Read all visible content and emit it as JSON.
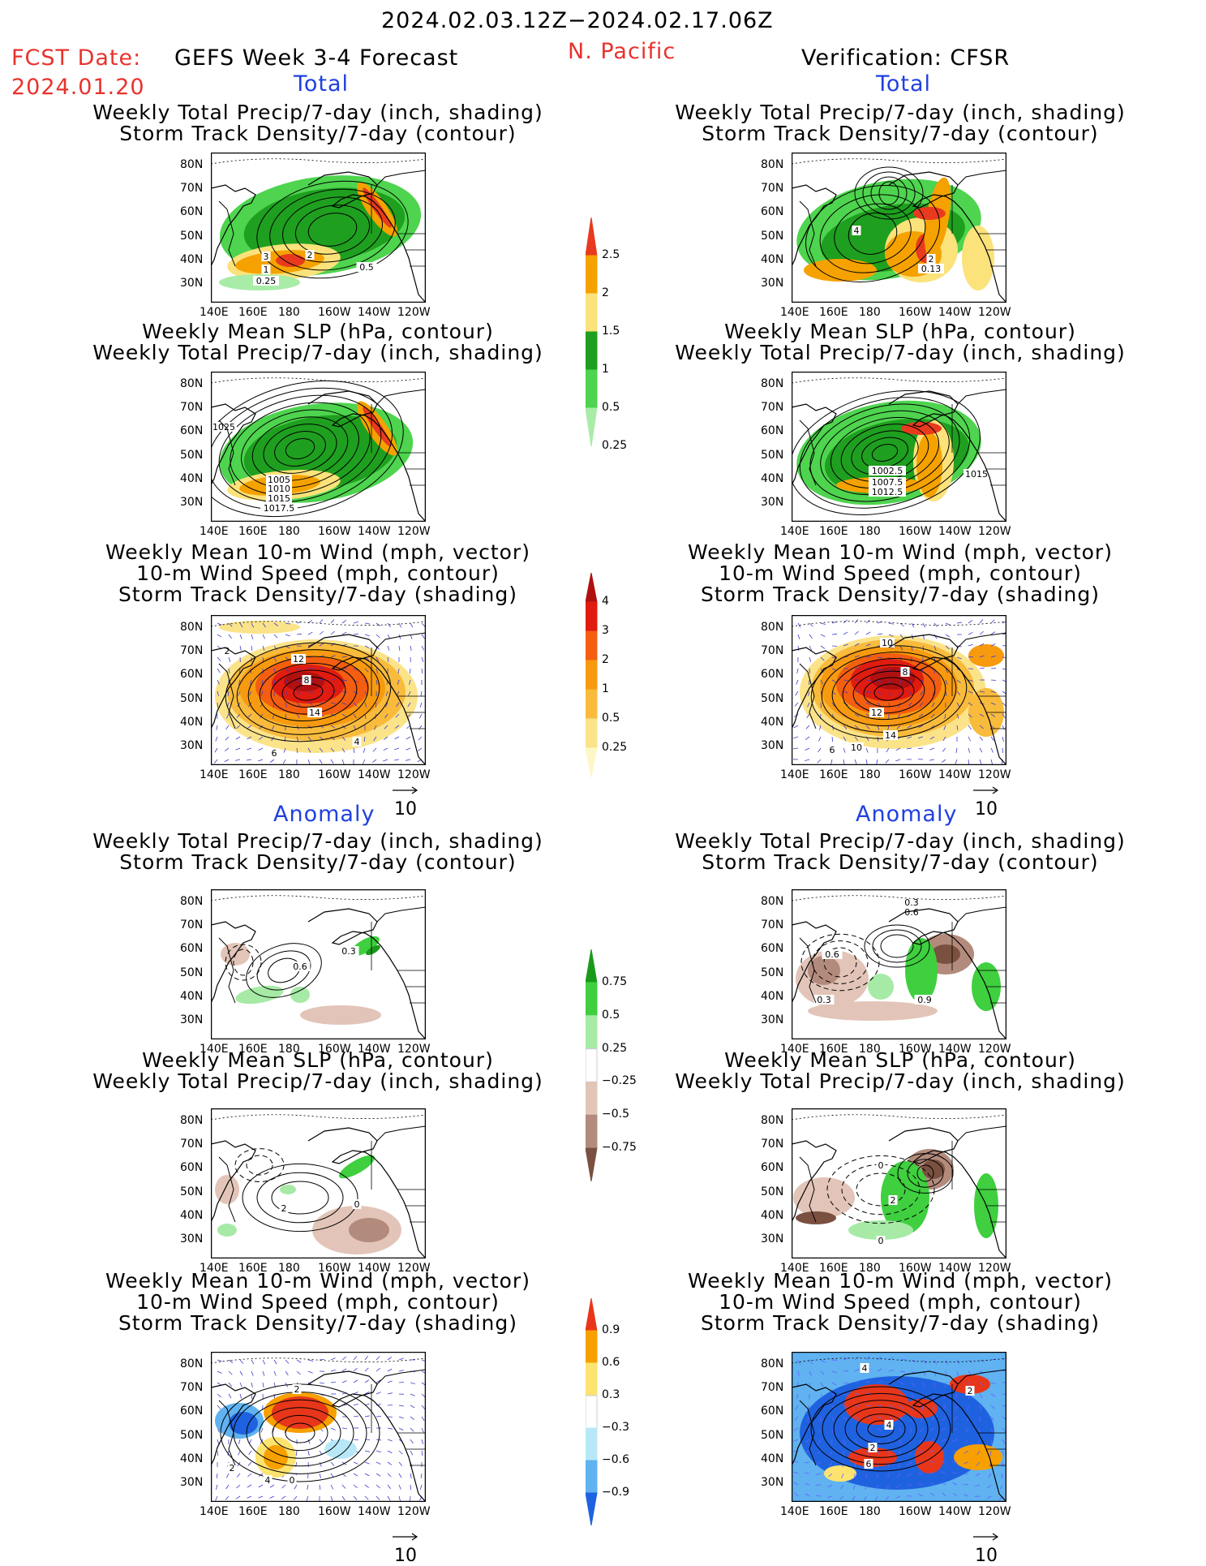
{
  "header": {
    "date_range": "2024.02.03.12Z−2024.02.17.06Z",
    "fcst_label": "FCST Date:",
    "fcst_date": "2024.01.20",
    "forecast_title": "GEFS Week 3-4 Forecast",
    "region": "N. Pacific",
    "verification": "Verification: CFSR"
  },
  "sections": {
    "total_left": "Total",
    "total_right": "Total",
    "anomaly_left": "Anomaly",
    "anomaly_right": "Anomaly"
  },
  "panel_titles": {
    "precip_storm": [
      "Weekly Total Precip/7-day (inch, shading)",
      "Storm Track Density/7-day (contour)"
    ],
    "slp_precip": [
      "Weekly Mean SLP (hPa, contour)",
      "Weekly Total Precip/7-day (inch, shading)"
    ],
    "wind_storm": [
      "Weekly Mean 10-m Wind (mph, vector)",
      "10-m Wind Speed (mph, contour)",
      "Storm Track Density/7-day (shading)"
    ]
  },
  "axes": {
    "lat_labels": [
      "80N",
      "70N",
      "60N",
      "50N",
      "40N",
      "30N"
    ],
    "lon_labels": [
      "140E",
      "160E",
      "180",
      "160W",
      "140W",
      "120W"
    ]
  },
  "vector_reference": "10",
  "colorbars": {
    "precip_total": {
      "labels": [
        "2.5",
        "2",
        "1.5",
        "1",
        "0.5",
        "0.25"
      ],
      "colors": [
        "#e83a1e",
        "#f5a200",
        "#fbe27a",
        "#1f9f1f",
        "#4ed44e",
        "#a8eca8"
      ]
    },
    "storm_total": {
      "labels": [
        "4",
        "3",
        "2",
        "1",
        "0.5",
        "0.25"
      ],
      "colors": [
        "#b01010",
        "#e01b10",
        "#f35e10",
        "#f79a10",
        "#f8bb3c",
        "#fbe38a",
        "#fdf7c8"
      ]
    },
    "precip_anom": {
      "labels": [
        "0.75",
        "0.5",
        "0.25",
        "−0.25",
        "−0.5",
        "−0.75"
      ],
      "colors": [
        "#1a9a1a",
        "#3fcf3f",
        "#a6eaa6",
        "#ffffff",
        "#e2c5b8",
        "#b38b7c",
        "#7a5040"
      ]
    },
    "storm_anom": {
      "labels": [
        "0.9",
        "0.6",
        "0.3",
        "−0.3",
        "−0.6",
        "−0.9"
      ],
      "colors": [
        "#e8361a",
        "#f7a000",
        "#fde470",
        "#ffffff",
        "#b8e8f8",
        "#60b2f0",
        "#1f62e0"
      ]
    }
  },
  "contour_labels": {
    "p1L": [
      "3",
      "2",
      "1",
      "0.5",
      "0.25"
    ],
    "p1R": [
      "4",
      "2",
      "0.13"
    ],
    "p2L": [
      "1025",
      "1005",
      "1010",
      "1015",
      "1017.5"
    ],
    "p2R": [
      "1002.5",
      "1007.5",
      "1012.5",
      "1015"
    ],
    "p3L": [
      "12",
      "8",
      "14",
      "6",
      "4",
      "2"
    ],
    "p3R": [
      "10",
      "8",
      "12",
      "14",
      "10",
      "6"
    ],
    "p4L": [
      "0.6",
      "0.3"
    ],
    "p4R": [
      "0.3",
      "0.6",
      "0.6",
      "0.3",
      "0.9"
    ],
    "p5L": [
      "2",
      "0"
    ],
    "p5R": [
      "0",
      "2",
      "0"
    ],
    "p6L": [
      "2",
      "0",
      "4",
      "2"
    ],
    "p6R": [
      "4",
      "2",
      "4",
      "2",
      "6"
    ]
  }
}
